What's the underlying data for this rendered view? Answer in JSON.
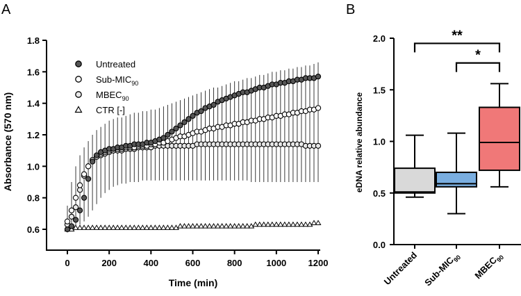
{
  "panels": {
    "a": "A",
    "b": "B"
  },
  "chart_data": [
    {
      "type": "line",
      "panel": "A",
      "xlabel": "Time (min)",
      "ylabel": "Absorbance (570 nm)",
      "xlim": [
        0,
        1200
      ],
      "ylim": [
        0.6,
        1.8
      ],
      "xticks": [
        0,
        200,
        400,
        600,
        800,
        1000,
        1200
      ],
      "yticks": [
        0.6,
        0.8,
        1.0,
        1.2,
        1.4,
        1.6,
        1.8
      ],
      "x": [
        0,
        20,
        40,
        60,
        80,
        100,
        120,
        140,
        160,
        180,
        200,
        220,
        240,
        260,
        280,
        300,
        320,
        340,
        360,
        380,
        400,
        420,
        440,
        460,
        480,
        500,
        520,
        540,
        560,
        580,
        600,
        620,
        640,
        660,
        680,
        700,
        720,
        740,
        760,
        780,
        800,
        820,
        840,
        860,
        880,
        900,
        920,
        940,
        960,
        980,
        1000,
        1020,
        1040,
        1060,
        1080,
        1100,
        1120,
        1140,
        1160,
        1180,
        1200
      ],
      "error_bar_upper_untreated": [
        0.75,
        0.9,
        1.0,
        1.07,
        1.12,
        1.16,
        1.2,
        1.23,
        1.25,
        1.27,
        1.29,
        1.3,
        1.31,
        1.31,
        1.32,
        1.33,
        1.34,
        1.34,
        1.35,
        1.35,
        1.36,
        1.36,
        1.37,
        1.38,
        1.39,
        1.4,
        1.41,
        1.42,
        1.43,
        1.44,
        1.45,
        1.46,
        1.47,
        1.48,
        1.49,
        1.5,
        1.5,
        1.51,
        1.52,
        1.53,
        1.54,
        1.54,
        1.55,
        1.56,
        1.56,
        1.57,
        1.58,
        1.58,
        1.59,
        1.6,
        1.6,
        1.61,
        1.61,
        1.62,
        1.62,
        1.63,
        1.63,
        1.64,
        1.64,
        1.65,
        1.66
      ],
      "error_bar_lower_untreated": [
        0.58,
        0.6,
        0.62,
        0.63,
        0.65,
        0.68,
        0.72,
        0.76,
        0.8,
        0.83,
        0.85,
        0.87,
        0.88,
        0.89,
        0.89,
        0.9,
        0.9,
        0.9,
        0.91,
        0.91,
        0.91,
        0.91,
        0.91,
        0.91,
        0.91,
        0.91,
        0.91,
        0.91,
        0.91,
        0.91,
        0.91,
        0.91,
        0.91,
        0.91,
        0.91,
        0.91,
        0.91,
        0.91,
        0.91,
        0.91,
        0.91,
        0.91,
        0.91,
        0.91,
        0.9,
        0.9,
        0.9,
        0.9,
        0.9,
        0.9,
        0.9,
        0.9,
        0.9,
        0.9,
        0.9,
        0.9,
        0.9,
        0.9,
        0.9,
        0.9,
        0.9
      ],
      "series": [
        {
          "name": "Untreated",
          "marker": "circle-filled",
          "color": "#555555",
          "values": [
            0.6,
            0.62,
            0.66,
            0.72,
            0.8,
            0.92,
            1.03,
            1.07,
            1.09,
            1.1,
            1.11,
            1.11,
            1.12,
            1.12,
            1.13,
            1.13,
            1.14,
            1.14,
            1.14,
            1.15,
            1.15,
            1.16,
            1.17,
            1.18,
            1.2,
            1.22,
            1.24,
            1.26,
            1.28,
            1.3,
            1.32,
            1.34,
            1.35,
            1.37,
            1.38,
            1.39,
            1.41,
            1.42,
            1.43,
            1.44,
            1.45,
            1.46,
            1.47,
            1.47,
            1.48,
            1.49,
            1.5,
            1.5,
            1.51,
            1.52,
            1.52,
            1.53,
            1.53,
            1.54,
            1.54,
            1.55,
            1.55,
            1.56,
            1.56,
            1.56,
            1.57
          ]
        },
        {
          "name": "Sub-MIC",
          "name_sub": "90",
          "marker": "circle-open",
          "color": "#ffffff",
          "values": [
            0.65,
            0.72,
            0.8,
            0.88,
            0.95,
            1.0,
            1.04,
            1.06,
            1.08,
            1.09,
            1.1,
            1.1,
            1.11,
            1.11,
            1.12,
            1.12,
            1.12,
            1.13,
            1.13,
            1.13,
            1.14,
            1.14,
            1.15,
            1.15,
            1.16,
            1.17,
            1.18,
            1.19,
            1.19,
            1.2,
            1.21,
            1.22,
            1.22,
            1.23,
            1.24,
            1.24,
            1.25,
            1.25,
            1.26,
            1.26,
            1.27,
            1.27,
            1.28,
            1.28,
            1.29,
            1.29,
            1.3,
            1.3,
            1.31,
            1.31,
            1.32,
            1.32,
            1.33,
            1.33,
            1.34,
            1.34,
            1.35,
            1.35,
            1.36,
            1.36,
            1.37
          ]
        },
        {
          "name": "MBEC",
          "name_sub": "90",
          "marker": "circle-light",
          "color": "#e8e8e8",
          "values": [
            0.63,
            0.68,
            0.74,
            0.85,
            0.94,
            1.0,
            1.04,
            1.06,
            1.07,
            1.08,
            1.09,
            1.1,
            1.1,
            1.1,
            1.11,
            1.11,
            1.11,
            1.12,
            1.12,
            1.12,
            1.12,
            1.13,
            1.13,
            1.13,
            1.13,
            1.13,
            1.13,
            1.13,
            1.13,
            1.13,
            1.13,
            1.14,
            1.14,
            1.14,
            1.14,
            1.14,
            1.14,
            1.14,
            1.14,
            1.14,
            1.14,
            1.14,
            1.14,
            1.14,
            1.14,
            1.14,
            1.14,
            1.14,
            1.14,
            1.14,
            1.14,
            1.14,
            1.14,
            1.14,
            1.14,
            1.14,
            1.14,
            1.13,
            1.13,
            1.13,
            1.13
          ]
        },
        {
          "name": "CTR [-]",
          "marker": "triangle-open",
          "color": "#ffffff",
          "values": [
            0.6,
            0.6,
            0.61,
            0.61,
            0.61,
            0.61,
            0.61,
            0.61,
            0.61,
            0.61,
            0.61,
            0.61,
            0.61,
            0.61,
            0.61,
            0.61,
            0.61,
            0.61,
            0.61,
            0.61,
            0.61,
            0.61,
            0.61,
            0.61,
            0.61,
            0.61,
            0.61,
            0.62,
            0.62,
            0.62,
            0.62,
            0.62,
            0.62,
            0.62,
            0.62,
            0.62,
            0.62,
            0.62,
            0.62,
            0.62,
            0.62,
            0.62,
            0.62,
            0.62,
            0.62,
            0.63,
            0.63,
            0.63,
            0.63,
            0.63,
            0.63,
            0.63,
            0.63,
            0.63,
            0.63,
            0.63,
            0.63,
            0.63,
            0.63,
            0.64,
            0.64
          ]
        }
      ]
    },
    {
      "type": "box",
      "panel": "B",
      "ylabel": "eDNA relative abundance",
      "ylim": [
        0,
        2.0
      ],
      "yticks": [
        "0.0",
        "0.5",
        "1.0",
        "1.5",
        "2.0"
      ],
      "categories": [
        {
          "label": "Untreated",
          "sub": "",
          "color": "#d9d9d9",
          "min": 0.46,
          "q1": 0.5,
          "median": 0.51,
          "q3": 0.74,
          "max": 1.06
        },
        {
          "label": "Sub-MIC",
          "sub": "90",
          "color": "#7aaee0",
          "min": 0.3,
          "q1": 0.56,
          "median": 0.59,
          "q3": 0.7,
          "max": 1.08
        },
        {
          "label": "MBEC",
          "sub": "90",
          "color": "#f07878",
          "min": 0.56,
          "q1": 0.72,
          "median": 0.99,
          "q3": 1.33,
          "max": 1.56
        }
      ],
      "significance": [
        {
          "from": 0,
          "to": 2,
          "label": "**",
          "y": 1.95
        },
        {
          "from": 1,
          "to": 2,
          "label": "*",
          "y": 1.76
        }
      ]
    }
  ]
}
